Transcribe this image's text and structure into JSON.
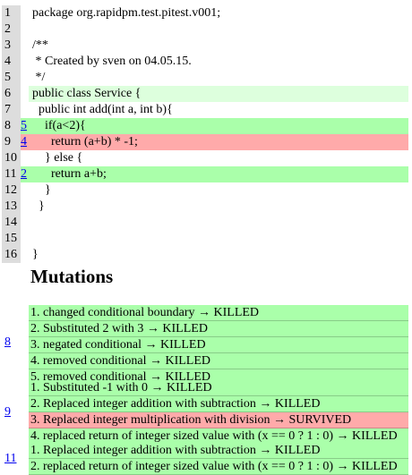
{
  "source": {
    "lines": [
      {
        "num": "1",
        "mutations": "",
        "code": "package org.rapidpm.test.pitest.v001;",
        "status": "none"
      },
      {
        "num": "2",
        "mutations": "",
        "code": "",
        "status": "none"
      },
      {
        "num": "3",
        "mutations": "",
        "code": "/**",
        "status": "none"
      },
      {
        "num": "4",
        "mutations": "",
        "code": " * Created by sven on 04.05.15.",
        "status": "none"
      },
      {
        "num": "5",
        "mutations": "",
        "code": " */",
        "status": "none"
      },
      {
        "num": "6",
        "mutations": "",
        "code": "public class Service {",
        "status": "covered"
      },
      {
        "num": "7",
        "mutations": "",
        "code": "  public int add(int a, int b){",
        "status": "none"
      },
      {
        "num": "8",
        "mutations": "5",
        "code": "    if(a<2){",
        "status": "killed"
      },
      {
        "num": "9",
        "mutations": "4",
        "code": "      return (a+b) * -1;",
        "status": "survived"
      },
      {
        "num": "10",
        "mutations": "",
        "code": "    } else {",
        "status": "none"
      },
      {
        "num": "11",
        "mutations": "2",
        "code": "      return a+b;",
        "status": "killed"
      },
      {
        "num": "12",
        "mutations": "",
        "code": "    }",
        "status": "none"
      },
      {
        "num": "13",
        "mutations": "",
        "code": "  }",
        "status": "none"
      },
      {
        "num": "14",
        "mutations": "",
        "code": "",
        "status": "none"
      },
      {
        "num": "15",
        "mutations": "",
        "code": "",
        "status": "none"
      },
      {
        "num": "16",
        "mutations": "",
        "code": "}",
        "status": "none"
      }
    ]
  },
  "mutations_heading": "Mutations",
  "mutation_groups": [
    {
      "line": "8",
      "items": [
        {
          "text": "1. changed conditional boundary → KILLED",
          "status": "killed"
        },
        {
          "text": "2. Substituted 2 with 3 → KILLED",
          "status": "killed"
        },
        {
          "text": "3. negated conditional → KILLED",
          "status": "killed"
        },
        {
          "text": "4. removed conditional → KILLED",
          "status": "killed"
        },
        {
          "text": "5. removed conditional → KILLED",
          "status": "killed"
        }
      ]
    },
    {
      "line": "9",
      "items": [
        {
          "text": "1. Substituted -1 with 0 → KILLED",
          "status": "killed"
        },
        {
          "text": "2. Replaced integer addition with subtraction → KILLED",
          "status": "killed"
        },
        {
          "text": "3. Replaced integer multiplication with division → SURVIVED",
          "status": "survived"
        },
        {
          "text": "4. replaced return of integer sized value with (x == 0 ? 1 : 0) → KILLED",
          "status": "killed"
        }
      ]
    },
    {
      "line": "11",
      "items": [
        {
          "text": "1. Replaced integer addition with subtraction → KILLED",
          "status": "killed"
        },
        {
          "text": "2. replaced return of integer sized value with (x == 0 ? 1 : 0) → KILLED",
          "status": "killed"
        }
      ]
    }
  ],
  "colors": {
    "covered": "#ddffdd",
    "killed": "#aaffaa",
    "survived": "#ffaaaa",
    "line_number_shade": "#dddddd",
    "link": "#0000ee"
  }
}
